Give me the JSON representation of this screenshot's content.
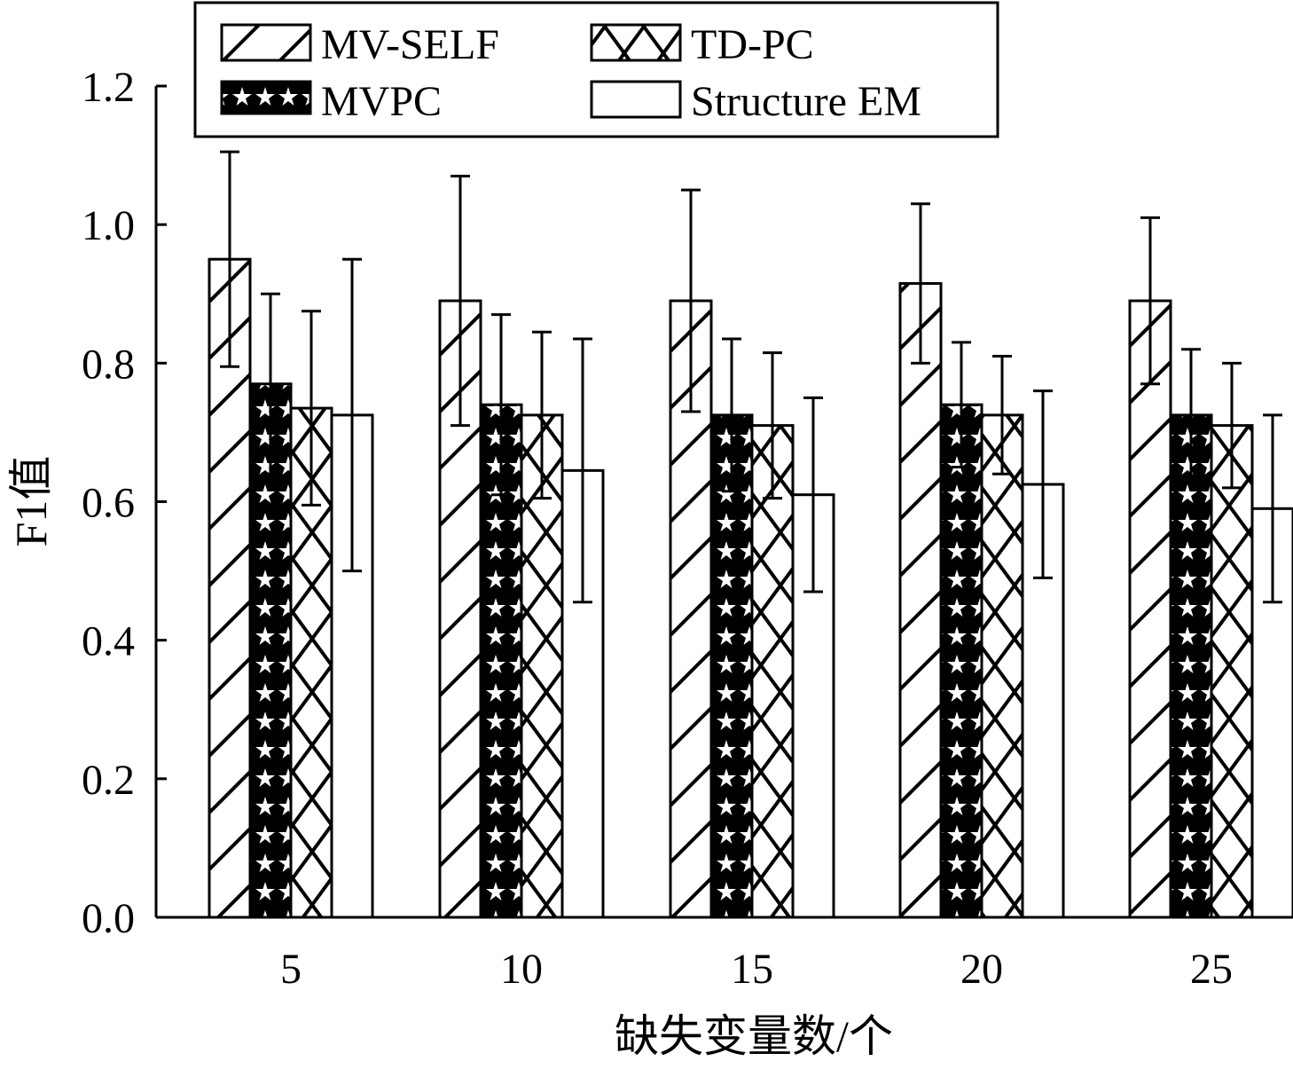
{
  "chart_data": {
    "type": "bar",
    "xlabel": "缺失变量数/个",
    "ylabel": "F1值",
    "ylim": [
      0,
      1.2
    ],
    "yticks": [
      "0.0",
      "0.2",
      "0.4",
      "0.6",
      "0.8",
      "1.0",
      "1.2"
    ],
    "categories": [
      "5",
      "10",
      "15",
      "20",
      "25"
    ],
    "legend": {
      "placement": "top",
      "columns": 2
    },
    "series": [
      {
        "name": "MV-SELF",
        "pattern": "diagonal-hatch",
        "values": [
          0.95,
          0.89,
          0.89,
          0.915,
          0.89
        ],
        "errors": [
          0.155,
          0.18,
          0.16,
          0.115,
          0.12
        ]
      },
      {
        "name": "MVPC",
        "pattern": "star-fill",
        "values": [
          0.77,
          0.74,
          0.725,
          0.74,
          0.725
        ],
        "errors": [
          0.13,
          0.13,
          0.11,
          0.09,
          0.095
        ]
      },
      {
        "name": "TD-PC",
        "pattern": "cross-hatch",
        "values": [
          0.735,
          0.725,
          0.71,
          0.725,
          0.71
        ],
        "errors": [
          0.14,
          0.12,
          0.105,
          0.085,
          0.09
        ]
      },
      {
        "name": "Structure EM",
        "pattern": "none",
        "values": [
          0.725,
          0.645,
          0.61,
          0.625,
          0.59
        ],
        "errors": [
          0.225,
          0.19,
          0.14,
          0.135,
          0.135
        ]
      }
    ],
    "colors": {
      "stroke": "#000000",
      "fill": "#ffffff"
    }
  }
}
